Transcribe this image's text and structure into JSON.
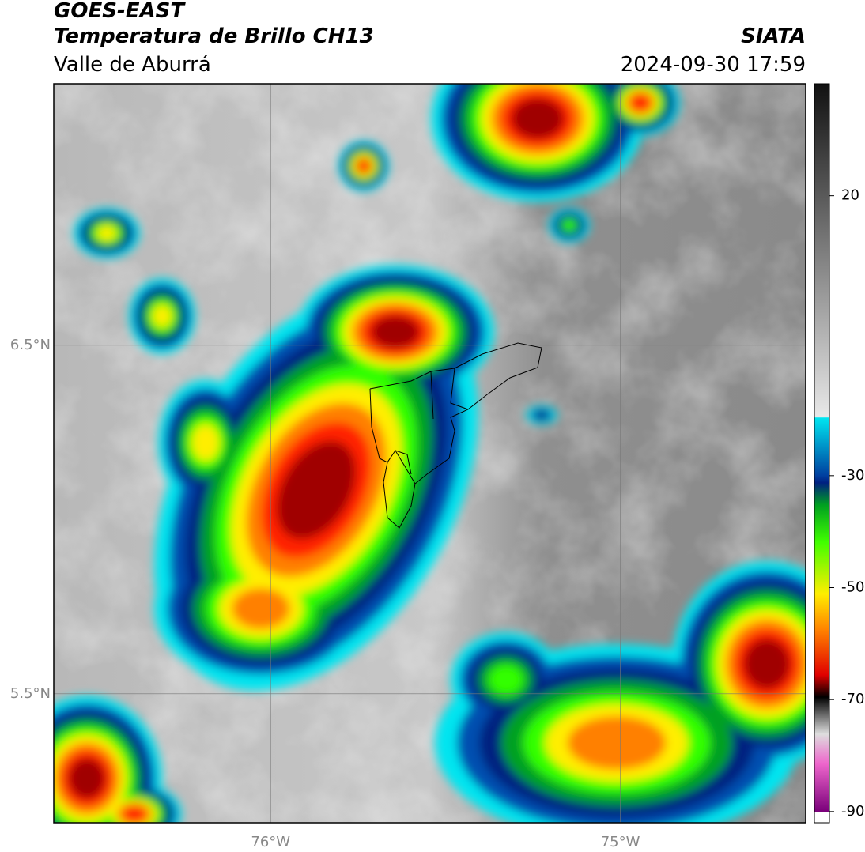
{
  "header": {
    "title": "GOES-EAST",
    "subtitle": "Temperatura de Brillo CH13",
    "region": "Valle de Aburrá",
    "source": "SIATA",
    "datetime": "2024-09-30 17:59"
  },
  "map": {
    "lonlim": [
      -76.62,
      -74.47
    ],
    "latlim": [
      5.13,
      7.25
    ],
    "lonticks": [
      {
        "value": -76,
        "label": "76°W"
      },
      {
        "value": -75,
        "label": "75°W"
      }
    ],
    "latticks": [
      {
        "value": 6.5,
        "label": "6.5°N"
      },
      {
        "value": 5.5,
        "label": "5.5°N"
      }
    ],
    "grid": true
  },
  "colorbar": {
    "lim": [
      -92,
      40
    ],
    "ticks": [
      20,
      -30,
      -50,
      -70,
      -90
    ]
  }
}
